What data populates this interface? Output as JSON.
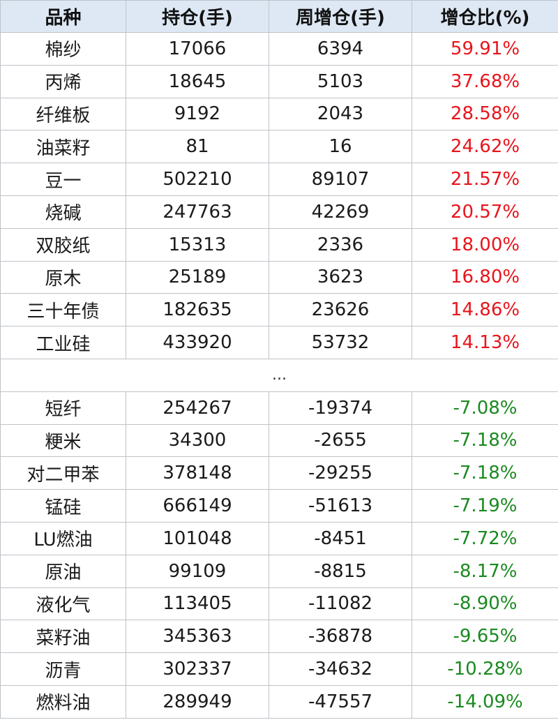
{
  "headers": [
    "品种",
    "持仓(手)",
    "周增仓(手)",
    "增仓比(%)"
  ],
  "colors": {
    "increase": "#e8141c",
    "decrease": "#1a8a20",
    "header_bg": "#dde8f4"
  },
  "top_rows": [
    {
      "name": "棉纱",
      "position": "17066",
      "weekly_change": "6394",
      "ratio": "59.91%"
    },
    {
      "name": "丙烯",
      "position": "18645",
      "weekly_change": "5103",
      "ratio": "37.68%"
    },
    {
      "name": "纤维板",
      "position": "9192",
      "weekly_change": "2043",
      "ratio": "28.58%"
    },
    {
      "name": "油菜籽",
      "position": "81",
      "weekly_change": "16",
      "ratio": "24.62%"
    },
    {
      "name": "豆一",
      "position": "502210",
      "weekly_change": "89107",
      "ratio": "21.57%"
    },
    {
      "name": "烧碱",
      "position": "247763",
      "weekly_change": "42269",
      "ratio": "20.57%"
    },
    {
      "name": "双胶纸",
      "position": "15313",
      "weekly_change": "2336",
      "ratio": "18.00%"
    },
    {
      "name": "原木",
      "position": "25189",
      "weekly_change": "3623",
      "ratio": "16.80%"
    },
    {
      "name": "三十年债",
      "position": "182635",
      "weekly_change": "23626",
      "ratio": "14.86%"
    },
    {
      "name": "工业硅",
      "position": "433920",
      "weekly_change": "53732",
      "ratio": "14.13%"
    }
  ],
  "ellipsis": "...",
  "bottom_rows": [
    {
      "name": "短纤",
      "position": "254267",
      "weekly_change": "-19374",
      "ratio": "-7.08%"
    },
    {
      "name": "粳米",
      "position": "34300",
      "weekly_change": "-2655",
      "ratio": "-7.18%"
    },
    {
      "name": "对二甲苯",
      "position": "378148",
      "weekly_change": "-29255",
      "ratio": "-7.18%"
    },
    {
      "name": "锰硅",
      "position": "666149",
      "weekly_change": "-51613",
      "ratio": "-7.19%"
    },
    {
      "name": "LU燃油",
      "position": "101048",
      "weekly_change": "-8451",
      "ratio": "-7.72%"
    },
    {
      "name": "原油",
      "position": "99109",
      "weekly_change": "-8815",
      "ratio": "-8.17%"
    },
    {
      "name": "液化气",
      "position": "113405",
      "weekly_change": "-11082",
      "ratio": "-8.90%"
    },
    {
      "name": "菜籽油",
      "position": "345363",
      "weekly_change": "-36878",
      "ratio": "-9.65%"
    },
    {
      "name": "沥青",
      "position": "302337",
      "weekly_change": "-34632",
      "ratio": "-10.28%"
    },
    {
      "name": "燃料油",
      "position": "289949",
      "weekly_change": "-47557",
      "ratio": "-14.09%"
    }
  ]
}
